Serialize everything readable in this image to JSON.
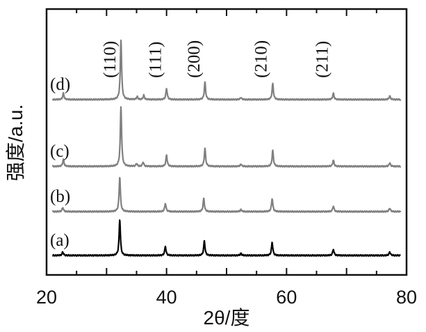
{
  "chart_data": {
    "type": "line",
    "title": "",
    "xlabel": "2θ/度",
    "ylabel": "强度/a.u.",
    "xlim": [
      20,
      80
    ],
    "xticks": [
      20,
      40,
      60,
      80
    ],
    "xtick_labels": [
      "20",
      "40",
      "60",
      "80"
    ],
    "y_ticks_shown": false,
    "grid": false,
    "legend": "none",
    "peak_labels": [
      {
        "text": "(110)",
        "x": 32.4
      },
      {
        "text": "(111)",
        "x": 40.0
      },
      {
        "text": "(200)",
        "x": 46.4
      },
      {
        "text": "(210)",
        "x": 57.6
      },
      {
        "text": "(211)",
        "x": 67.8
      }
    ],
    "series": [
      {
        "label": "(a)",
        "color": "#000000",
        "offset": 0,
        "peaks": [
          {
            "x": 22.7,
            "h": 5
          },
          {
            "x": 32.2,
            "h": 52
          },
          {
            "x": 39.8,
            "h": 13
          },
          {
            "x": 46.3,
            "h": 21
          },
          {
            "x": 52.4,
            "h": 3
          },
          {
            "x": 57.6,
            "h": 19
          },
          {
            "x": 67.8,
            "h": 9
          },
          {
            "x": 77.2,
            "h": 5
          }
        ]
      },
      {
        "label": "(b)",
        "color": "#808080",
        "offset": 63,
        "peaks": [
          {
            "x": 22.7,
            "h": 6
          },
          {
            "x": 32.2,
            "h": 50
          },
          {
            "x": 39.8,
            "h": 12
          },
          {
            "x": 46.2,
            "h": 19
          },
          {
            "x": 52.4,
            "h": 3
          },
          {
            "x": 57.6,
            "h": 19
          },
          {
            "x": 67.8,
            "h": 8
          },
          {
            "x": 77.2,
            "h": 5
          }
        ]
      },
      {
        "label": "(c)",
        "color": "#808080",
        "offset": 128,
        "peaks": [
          {
            "x": 22.8,
            "h": 10
          },
          {
            "x": 32.4,
            "h": 86
          },
          {
            "x": 35.0,
            "h": 4
          },
          {
            "x": 36.1,
            "h": 6
          },
          {
            "x": 40.0,
            "h": 16
          },
          {
            "x": 46.4,
            "h": 26
          },
          {
            "x": 52.4,
            "h": 3
          },
          {
            "x": 57.7,
            "h": 23
          },
          {
            "x": 67.8,
            "h": 9
          },
          {
            "x": 77.2,
            "h": 5
          }
        ]
      },
      {
        "label": "(d)",
        "color": "#808080",
        "offset": 224,
        "peaks": [
          {
            "x": 22.8,
            "h": 9
          },
          {
            "x": 32.4,
            "h": 86
          },
          {
            "x": 35.1,
            "h": 4
          },
          {
            "x": 36.2,
            "h": 6
          },
          {
            "x": 40.0,
            "h": 16
          },
          {
            "x": 46.4,
            "h": 25
          },
          {
            "x": 52.4,
            "h": 3
          },
          {
            "x": 57.7,
            "h": 23
          },
          {
            "x": 67.8,
            "h": 9
          },
          {
            "x": 77.2,
            "h": 5
          }
        ]
      }
    ]
  }
}
